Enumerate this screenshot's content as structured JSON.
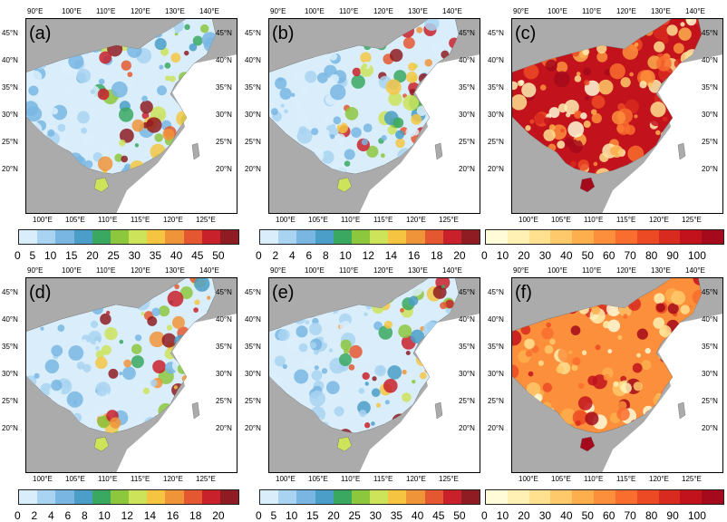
{
  "lon_top_labels": [
    "90°E",
    "100°E",
    "110°E",
    "120°E",
    "130°E",
    "140°E"
  ],
  "lon_bottom_labels": [
    "100°E",
    "105°E",
    "110°E",
    "115°E",
    "120°E",
    "125°E"
  ],
  "lat_labels": [
    "45°N",
    "40°N",
    "35°N",
    "30°N",
    "25°N",
    "20°N"
  ],
  "panels": [
    {
      "label": "(a)",
      "scheme": "blue"
    },
    {
      "label": "(b)",
      "scheme": "blue"
    },
    {
      "label": "(c)",
      "scheme": "red"
    },
    {
      "label": "(d)",
      "scheme": "blue"
    },
    {
      "label": "(e)",
      "scheme": "blue"
    },
    {
      "label": "(f)",
      "scheme": "yellow"
    }
  ],
  "colorbars": [
    {
      "ticks": [
        "0",
        "5",
        "10",
        "15",
        "20",
        "25",
        "30",
        "35",
        "40",
        "45",
        "50"
      ],
      "colors": [
        "#d9eefa",
        "#a9d4f1",
        "#79b6e2",
        "#4a9ec8",
        "#3aa860",
        "#8dc73e",
        "#cde35a",
        "#f5c542",
        "#f0943a",
        "#e45731",
        "#c8212c",
        "#8e1c22"
      ]
    },
    {
      "ticks": [
        "0",
        "2",
        "4",
        "6",
        "8",
        "10",
        "12",
        "14",
        "16",
        "18",
        "20"
      ],
      "colors": [
        "#d9eefa",
        "#a9d4f1",
        "#79b6e2",
        "#4a9ec8",
        "#3aa860",
        "#8dc73e",
        "#cde35a",
        "#f5c542",
        "#f0943a",
        "#e45731",
        "#c8212c",
        "#8e1c22"
      ]
    },
    {
      "ticks": [
        "0",
        "10",
        "20",
        "30",
        "40",
        "50",
        "60",
        "70",
        "80",
        "90",
        "100"
      ],
      "colors": [
        "#fffbd9",
        "#fff0b3",
        "#ffe190",
        "#fec96a",
        "#fdaf4e",
        "#fc8f3b",
        "#f96d2e",
        "#ec4a24",
        "#d82a1f",
        "#c2131d",
        "#a40a1b"
      ]
    },
    {
      "ticks": [
        "0",
        "2",
        "4",
        "6",
        "8",
        "10",
        "12",
        "14",
        "16",
        "18",
        "20"
      ],
      "colors": [
        "#d9eefa",
        "#a9d4f1",
        "#79b6e2",
        "#4a9ec8",
        "#3aa860",
        "#8dc73e",
        "#cde35a",
        "#f5c542",
        "#f0943a",
        "#e45731",
        "#c8212c",
        "#8e1c22"
      ]
    },
    {
      "ticks": [
        "0",
        "5",
        "10",
        "15",
        "20",
        "25",
        "30",
        "35",
        "40",
        "45",
        "50"
      ],
      "colors": [
        "#d9eefa",
        "#a9d4f1",
        "#79b6e2",
        "#4a9ec8",
        "#3aa860",
        "#8dc73e",
        "#cde35a",
        "#f5c542",
        "#f0943a",
        "#e45731",
        "#c8212c",
        "#8e1c22"
      ]
    },
    {
      "ticks": [
        "0",
        "10",
        "20",
        "30",
        "40",
        "50",
        "60",
        "70",
        "80",
        "90",
        "100"
      ],
      "colors": [
        "#fffbd9",
        "#fff0b3",
        "#ffe190",
        "#fec96a",
        "#fdaf4e",
        "#fc8f3b",
        "#f96d2e",
        "#ec4a24",
        "#d82a1f",
        "#c2131d",
        "#a40a1b"
      ]
    }
  ]
}
